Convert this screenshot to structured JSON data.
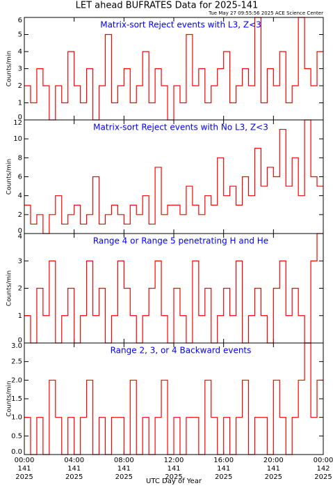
{
  "title": "LET ahead BUFRATES Data for 2025-141",
  "timestamp": "Tue May 27 09:55:56 2025 ACE Science Center",
  "chart_data": [
    {
      "type": "line",
      "title": "Matrix-sort Reject events with L3, Z<3",
      "ylabel": "Counts/min",
      "xlim": [
        0,
        24
      ],
      "ylim": [
        0,
        6
      ],
      "yticks": [
        0,
        1,
        2,
        3,
        4,
        5,
        6
      ],
      "x": [
        0,
        0.5,
        1,
        1.5,
        2,
        2.5,
        3,
        3.5,
        4,
        4.5,
        5,
        5.5,
        6,
        6.5,
        7,
        7.5,
        8,
        8.5,
        9,
        9.5,
        10,
        10.5,
        11,
        11.5,
        12,
        12.5,
        13,
        13.5,
        14,
        14.5,
        15,
        15.5,
        16,
        16.5,
        17,
        17.5,
        18,
        18.5,
        19,
        19.5,
        20,
        20.5,
        21,
        21.5,
        22,
        22.5,
        23,
        23.5
      ],
      "series": [
        {
          "color": "#ff0000",
          "values": [
            2,
            1,
            3,
            2,
            0,
            2,
            1,
            4,
            2,
            1,
            3,
            0,
            2,
            5,
            1,
            2,
            3,
            1,
            2,
            4,
            1,
            3,
            2,
            0,
            2,
            1,
            5,
            2,
            3,
            1,
            2,
            3,
            4,
            1,
            2,
            3,
            2,
            6,
            1,
            3,
            2,
            4,
            1,
            2,
            6,
            3,
            2,
            4
          ]
        }
      ]
    },
    {
      "type": "line",
      "title": "Matrix-sort Reject events with No L3, Z<3",
      "ylabel": "Counts/min",
      "xlim": [
        0,
        24
      ],
      "ylim": [
        0,
        12
      ],
      "yticks": [
        0,
        2,
        4,
        6,
        8,
        10,
        12
      ],
      "x": [
        0,
        0.5,
        1,
        1.5,
        2,
        2.5,
        3,
        3.5,
        4,
        4.5,
        5,
        5.5,
        6,
        6.5,
        7,
        7.5,
        8,
        8.5,
        9,
        9.5,
        10,
        10.5,
        11,
        11.5,
        12,
        12.5,
        13,
        13.5,
        14,
        14.5,
        15,
        15.5,
        16,
        16.5,
        17,
        17.5,
        18,
        18.5,
        19,
        19.5,
        20,
        20.5,
        21,
        21.5,
        22,
        22.5,
        23,
        23.5
      ],
      "series": [
        {
          "color": "#ff0000",
          "values": [
            3,
            1,
            2,
            0,
            2,
            4,
            1,
            2,
            3,
            1,
            2,
            6,
            1,
            2,
            3,
            2,
            1,
            3,
            2,
            4,
            1,
            7,
            2,
            3,
            3,
            2,
            5,
            3,
            2,
            4,
            3,
            8,
            4,
            5,
            3,
            6,
            4,
            9,
            5,
            7,
            6,
            11,
            5,
            8,
            4,
            12,
            6,
            5
          ]
        }
      ]
    },
    {
      "type": "line",
      "title": "Range 4 or Range 5 penetrating H and He",
      "ylabel": "Counts/min",
      "xlim": [
        0,
        24
      ],
      "ylim": [
        0,
        4
      ],
      "yticks": [
        0,
        1,
        2,
        3,
        4
      ],
      "x": [
        0,
        0.5,
        1,
        1.5,
        2,
        2.5,
        3,
        3.5,
        4,
        4.5,
        5,
        5.5,
        6,
        6.5,
        7,
        7.5,
        8,
        8.5,
        9,
        9.5,
        10,
        10.5,
        11,
        11.5,
        12,
        12.5,
        13,
        13.5,
        14,
        14.5,
        15,
        15.5,
        16,
        16.5,
        17,
        17.5,
        18,
        18.5,
        19,
        19.5,
        20,
        20.5,
        21,
        21.5,
        22,
        22.5,
        23,
        23.5
      ],
      "series": [
        {
          "color": "#ff0000",
          "values": [
            1,
            0,
            2,
            1,
            3,
            0,
            1,
            2,
            0,
            1,
            3,
            1,
            2,
            0,
            1,
            3,
            2,
            1,
            0,
            1,
            2,
            3,
            1,
            0,
            2,
            1,
            0,
            3,
            1,
            2,
            0,
            1,
            2,
            1,
            3,
            0,
            1,
            2,
            1,
            0,
            2,
            3,
            1,
            2,
            1,
            0,
            3,
            4
          ]
        }
      ]
    },
    {
      "type": "line",
      "title": "Range 2, 3, or 4 Backward events",
      "ylabel": "Counts/min",
      "xlabel": "UTC Day of Year",
      "xlim": [
        0,
        24
      ],
      "ylim": [
        0,
        3
      ],
      "yticks": [
        {
          "value": 0,
          "label": "0.0"
        },
        {
          "value": 0.5,
          "label": "0.5"
        },
        {
          "value": 1,
          "label": "1.0"
        },
        {
          "value": 1.5,
          "label": "1.5"
        },
        {
          "value": 2,
          "label": "2.0"
        },
        {
          "value": 2.5,
          "label": "2.5"
        },
        {
          "value": 3,
          "label": "3.0"
        }
      ],
      "xticks": [
        {
          "value": 0,
          "label": "00:00"
        },
        {
          "value": 4,
          "label": "04:00"
        },
        {
          "value": 8,
          "label": "08:00"
        },
        {
          "value": 12,
          "label": "12:00"
        },
        {
          "value": 16,
          "label": "16:00"
        },
        {
          "value": 20,
          "label": "20:00"
        },
        {
          "value": 24,
          "label": "00:00"
        }
      ],
      "xtick_days": [
        "141",
        "141",
        "141",
        "141",
        "141",
        "141",
        "142"
      ],
      "xtick_years": [
        "2025",
        "2025",
        "2025",
        "2025",
        "2025",
        "2025",
        "2025"
      ],
      "x": [
        0,
        0.5,
        1,
        1.5,
        2,
        2.5,
        3,
        3.5,
        4,
        4.5,
        5,
        5.5,
        6,
        6.5,
        7,
        7.5,
        8,
        8.5,
        9,
        9.5,
        10,
        10.5,
        11,
        11.5,
        12,
        12.5,
        13,
        13.5,
        14,
        14.5,
        15,
        15.5,
        16,
        16.5,
        17,
        17.5,
        18,
        18.5,
        19,
        19.5,
        20,
        20.5,
        21,
        21.5,
        22,
        22.5,
        23,
        23.5
      ],
      "series": [
        {
          "color": "#ff0000",
          "values": [
            1,
            0,
            1,
            0,
            2,
            1,
            0,
            1,
            0,
            1,
            2,
            0,
            1,
            0,
            1,
            1,
            0,
            2,
            0,
            1,
            0,
            1,
            2,
            0,
            1,
            0,
            1,
            1,
            0,
            2,
            1,
            0,
            1,
            0,
            1,
            2,
            0,
            1,
            1,
            0,
            2,
            1,
            0,
            1,
            2,
            3,
            1,
            2
          ]
        }
      ]
    }
  ]
}
